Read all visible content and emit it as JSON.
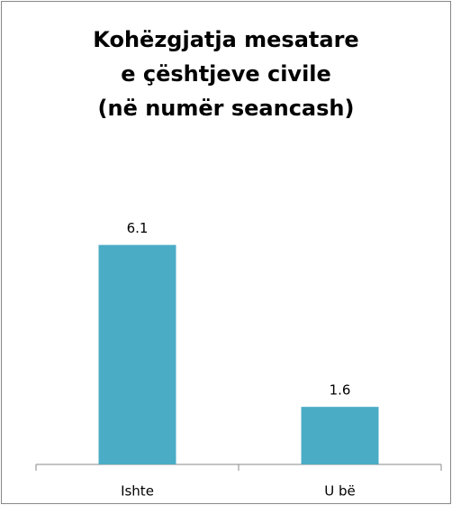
{
  "chart_data": {
    "type": "bar",
    "title": [
      "Kohëzgjatja mesatare",
      "e çështjeve civile",
      "(në numër seancash)"
    ],
    "categories": [
      "Ishte",
      "U bë"
    ],
    "values": [
      6.1,
      1.6
    ],
    "color": "#4bacc6"
  }
}
